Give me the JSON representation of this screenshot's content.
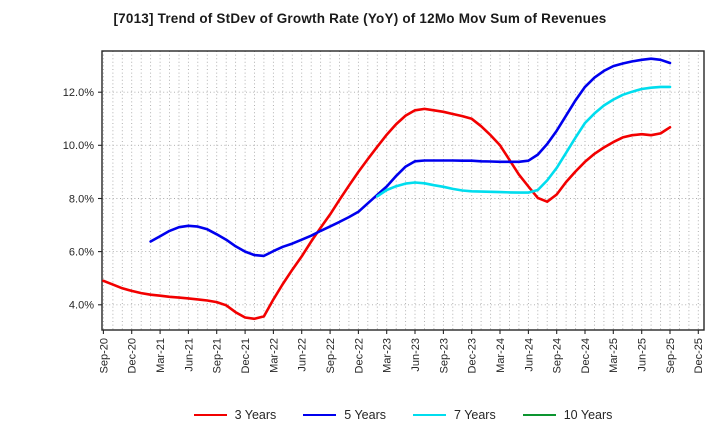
{
  "title": "[7013]  Trend of StDev of Growth Rate (YoY) of 12Mo Mov Sum of Revenues",
  "chart_data": {
    "type": "line",
    "title": "[7013]  Trend of StDev of Growth Rate (YoY) of 12Mo Mov Sum of Revenues",
    "unit": "%",
    "grid": "dotted",
    "legend_position": "bottom-center",
    "y_axis": {
      "ylim": [
        3.05,
        13.55
      ],
      "tick_values": [
        4,
        6,
        8,
        10,
        12
      ],
      "tick_labels": [
        "4.0%",
        "6.0%",
        "8.0%",
        "10.0%",
        "12.0%"
      ]
    },
    "x_axis": {
      "xlim_months": [
        -0.15,
        63.6
      ],
      "total_months": 63,
      "tick_every_months": 3,
      "tick_labels": [
        "Sep-20",
        "Dec-20",
        "Mar-21",
        "Jun-21",
        "Sep-21",
        "Dec-21",
        "Mar-22",
        "Jun-22",
        "Sep-22",
        "Dec-22",
        "Mar-23",
        "Jun-23",
        "Sep-23",
        "Dec-23",
        "Mar-24",
        "Jun-24",
        "Sep-24",
        "Dec-24",
        "Mar-25",
        "Jun-25",
        "Sep-25",
        "Dec-25"
      ]
    },
    "series": [
      {
        "name": "3 Years",
        "color": "#f20000",
        "start_month_index": 0,
        "start_label": "Sep-20",
        "values": [
          4.9,
          4.76,
          4.62,
          4.52,
          4.44,
          4.38,
          4.34,
          4.3,
          4.27,
          4.24,
          4.2,
          4.16,
          4.1,
          3.98,
          3.72,
          3.52,
          3.47,
          3.56,
          4.2,
          4.78,
          5.32,
          5.82,
          6.38,
          6.9,
          7.4,
          7.95,
          8.48,
          9.0,
          9.48,
          9.95,
          10.4,
          10.8,
          11.12,
          11.32,
          11.37,
          11.32,
          11.26,
          11.18,
          11.1,
          11.0,
          10.72,
          10.38,
          10.0,
          9.45,
          8.9,
          8.45,
          8.02,
          7.88,
          8.15,
          8.62,
          9.02,
          9.38,
          9.68,
          9.92,
          10.12,
          10.3,
          10.38,
          10.42,
          10.38,
          10.45,
          10.68
        ]
      },
      {
        "name": "5 Years",
        "color": "#0000ee",
        "start_month_index": 5,
        "start_label": "Feb-21",
        "values": [
          6.38,
          6.58,
          6.78,
          6.92,
          6.97,
          6.94,
          6.84,
          6.65,
          6.45,
          6.2,
          6.0,
          5.87,
          5.84,
          6.02,
          6.18,
          6.3,
          6.45,
          6.6,
          6.78,
          6.95,
          7.12,
          7.3,
          7.5,
          7.82,
          8.14,
          8.45,
          8.85,
          9.2,
          9.4,
          9.43,
          9.43,
          9.43,
          9.43,
          9.42,
          9.42,
          9.4,
          9.39,
          9.38,
          9.38,
          9.38,
          9.42,
          9.65,
          10.05,
          10.55,
          11.12,
          11.7,
          12.2,
          12.55,
          12.8,
          12.98,
          13.08,
          13.16,
          13.22,
          13.26,
          13.22,
          13.1
        ]
      },
      {
        "name": "7 Years",
        "color": "#00ddee",
        "start_month_index": 29,
        "start_label": "Feb-23",
        "values": [
          8.08,
          8.32,
          8.46,
          8.56,
          8.6,
          8.57,
          8.5,
          8.44,
          8.36,
          8.3,
          8.27,
          8.26,
          8.25,
          8.24,
          8.23,
          8.22,
          8.22,
          8.32,
          8.68,
          9.15,
          9.72,
          10.3,
          10.84,
          11.2,
          11.5,
          11.72,
          11.9,
          12.02,
          12.12,
          12.17,
          12.2,
          12.2
        ]
      },
      {
        "name": "10 Years",
        "color": "#0c9530",
        "start_month_index": null,
        "start_label": null,
        "values": []
      }
    ]
  }
}
